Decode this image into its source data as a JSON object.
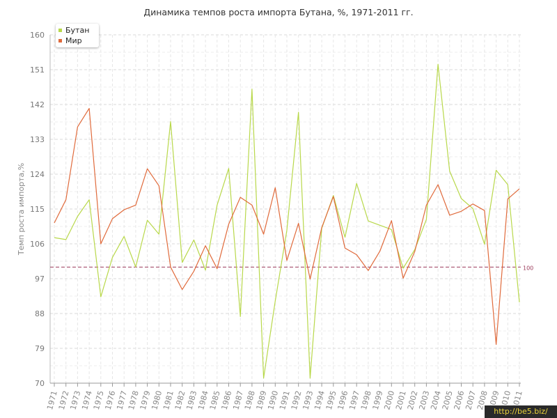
{
  "title": "Динамика темпов роста импорта Бутана, %, 1971-2011 гг.",
  "watermark": "http://be5.biz/",
  "legend": {
    "items": [
      "Бутан",
      "Мир"
    ]
  },
  "colors": {
    "bhutan": "#b8d84a",
    "world": "#e06a3b",
    "reference": "#9b3a5a"
  },
  "chart_data": {
    "type": "line",
    "title": "Динамика темпов роста импорта Бутана, %, 1971-2011 гг.",
    "xlabel": "",
    "ylabel": "Темп роста импорта,%",
    "ylim": [
      70,
      160
    ],
    "yticks": [
      70,
      79,
      88,
      97,
      106,
      115,
      124,
      133,
      142,
      151,
      160
    ],
    "grid": true,
    "legend_position": "top-left",
    "categories": [
      "1971",
      "1972",
      "1973",
      "1974",
      "1975",
      "1976",
      "1977",
      "1978",
      "1979",
      "1980",
      "1981",
      "1982",
      "1983",
      "1984",
      "1985",
      "1986",
      "1987",
      "1988",
      "1989",
      "1990",
      "1991",
      "1992",
      "1993",
      "1994",
      "1995",
      "1996",
      "1997",
      "1998",
      "1999",
      "2000",
      "2001",
      "2002",
      "2003",
      "2004",
      "2005",
      "2006",
      "2007",
      "2008",
      "2009",
      "2010",
      "2011"
    ],
    "series": [
      {
        "name": "Бутан",
        "values": [
          107.6,
          107.1,
          113.1,
          117.4,
          92.3,
          102.5,
          107.9,
          100.0,
          112.1,
          108.5,
          137.6,
          101.2,
          107.0,
          99.2,
          116.0,
          125.5,
          87.2,
          146.0,
          71.3,
          91.2,
          109.5,
          140.0,
          71.3,
          110.0,
          118.5,
          107.7,
          121.6,
          111.9,
          110.8,
          109.7,
          99.7,
          104.5,
          112.3,
          152.4,
          124.8,
          117.7,
          115.1,
          105.9,
          125.0,
          121.3,
          90.9
        ]
      },
      {
        "name": "Мир",
        "values": [
          111.4,
          117.4,
          136.2,
          141.0,
          106.0,
          112.5,
          114.8,
          116.0,
          125.4,
          121.0,
          100.0,
          94.2,
          98.9,
          105.5,
          99.6,
          111.1,
          118.0,
          116.0,
          108.5,
          120.5,
          101.7,
          111.3,
          96.9,
          110.2,
          118.2,
          104.9,
          103.2,
          99.1,
          104.1,
          112.0,
          97.1,
          104.0,
          116.0,
          121.3,
          113.4,
          114.4,
          116.3,
          114.6,
          80.0,
          117.6,
          120.2
        ]
      }
    ],
    "reference_line": {
      "value": 100,
      "label": "100"
    }
  }
}
